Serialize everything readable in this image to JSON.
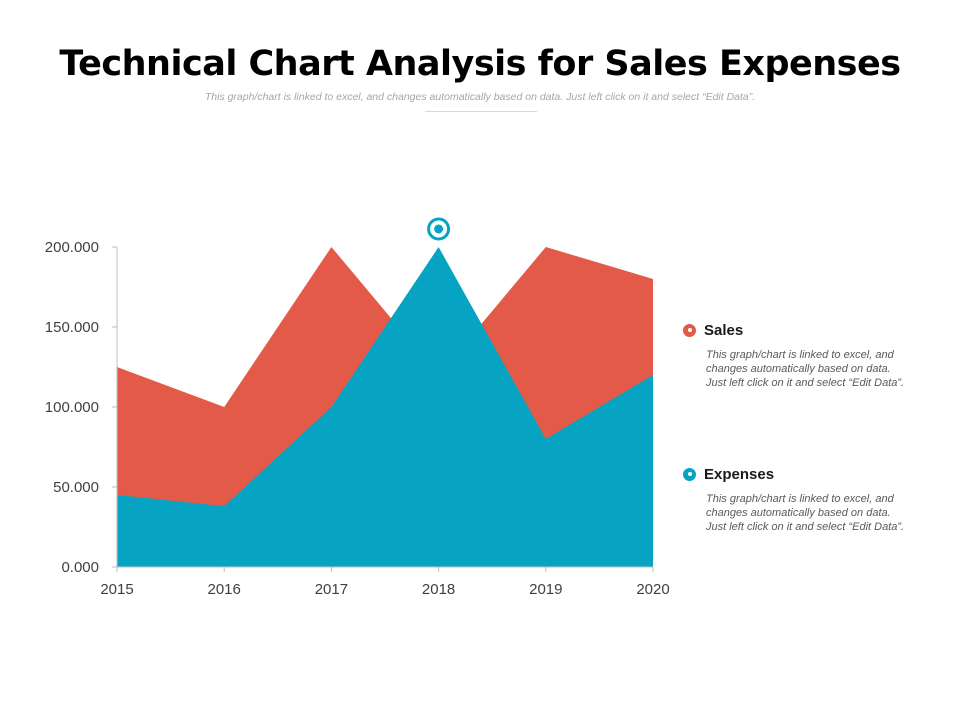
{
  "header": {
    "title": "Technical Chart Analysis for Sales Expenses",
    "subtitle": "This graph/chart is linked to excel, and changes automatically based on data. Just left click on it and select “Edit Data”."
  },
  "colors": {
    "sales": "#e35b48",
    "expenses": "#06a4c2",
    "axis": "#7f7f7f"
  },
  "legend": {
    "items": [
      {
        "name": "Sales",
        "color": "#e35b48",
        "description": "This graph/chart is linked to excel, and changes automatically based on data. Just left click on it and select “Edit Data”."
      },
      {
        "name": "Expenses",
        "color": "#06a4c2",
        "description": "This graph/chart is linked to excel, and changes automatically based on data. Just left click on it and select “Edit Data”."
      }
    ]
  },
  "chart_data": {
    "type": "area",
    "title": "Technical Chart Analysis for Sales Expenses",
    "categories": [
      "2015",
      "2016",
      "2017",
      "2018",
      "2019",
      "2020"
    ],
    "series": [
      {
        "name": "Sales",
        "values": [
          125,
          100,
          200,
          120,
          200,
          180
        ]
      },
      {
        "name": "Expenses",
        "values": [
          45,
          38,
          100,
          200,
          80,
          120
        ]
      }
    ],
    "yticks": [
      0,
      50,
      100,
      150,
      200
    ],
    "ytick_labels": [
      "0.000",
      "50.000",
      "100.000",
      "150.000",
      "200.000"
    ],
    "ylim": [
      0,
      200
    ],
    "xlabel": "",
    "ylabel": "",
    "grid": false,
    "legend_position": "right",
    "peak_marker": {
      "series": "Expenses",
      "category": "2018"
    }
  }
}
